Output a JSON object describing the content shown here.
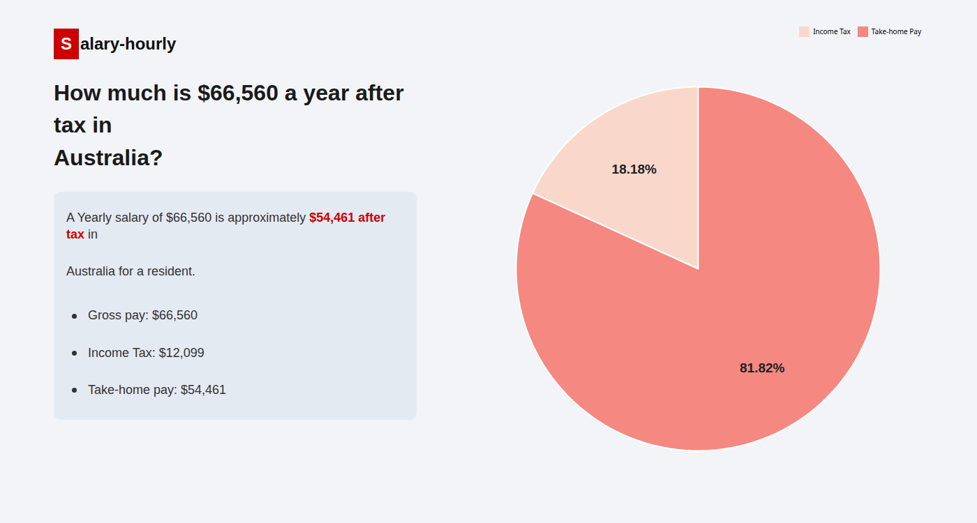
{
  "chart_data": {
    "type": "pie",
    "title": "How much is $66,560 a year after tax in\nAustralia?",
    "categories": [
      "Income Tax",
      "Take-home Pay"
    ],
    "values": [
      18.18,
      81.82
    ],
    "value_labels": [
      "18.18%",
      "81.82%"
    ],
    "colors": [
      "#f9d8cb",
      "#f58880"
    ],
    "data_labels": true,
    "legend": "upper right",
    "annotations": [
      {
        "text": "S",
        "color": "#cc0000"
      },
      {
        "text": "alary-hourly"
      },
      {
        "text": "A Yearly salary of $66,560 is approximately"
      },
      {
        "text": "$54,461 after tax",
        "color": "#cc0000"
      },
      {
        "text": "in"
      },
      {
        "text": "Australia for a resident."
      },
      {
        "text": "Gross pay: $66,560"
      },
      {
        "text": "Income Tax: $12,099"
      },
      {
        "text": "Take-home pay: $54,461"
      }
    ]
  }
}
